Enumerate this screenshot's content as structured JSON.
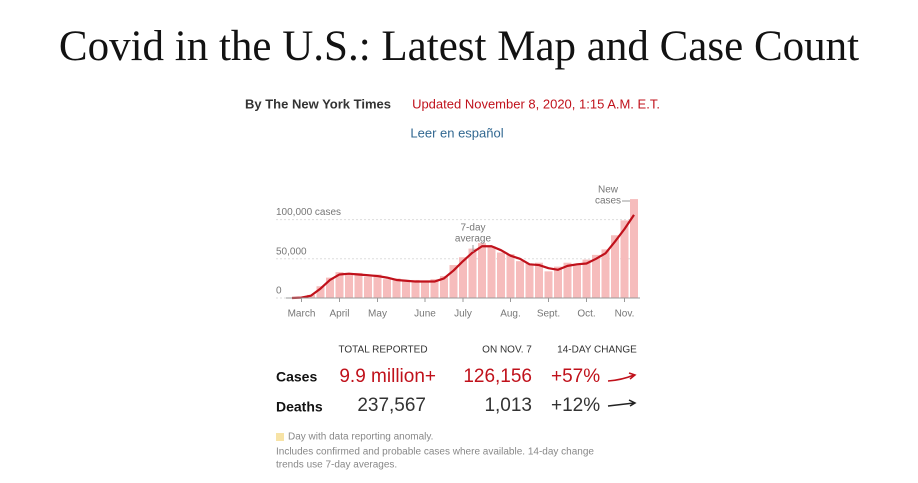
{
  "header": {
    "title": "Covid in the U.S.: Latest Map and Case Count",
    "byline": "By The New York Times",
    "updated": "Updated November 8, 2020, 1:15 A.M. E.T.",
    "language_link": "Leer en español"
  },
  "chart_data": {
    "type": "bar",
    "categories": [
      null,
      "March",
      null,
      null,
      null,
      "April",
      null,
      null,
      null,
      "May",
      null,
      null,
      null,
      null,
      "June",
      null,
      null,
      null,
      "July",
      null,
      null,
      null,
      null,
      "Aug.",
      null,
      null,
      null,
      "Sept.",
      null,
      null,
      null,
      "Oct.",
      null,
      null,
      null,
      "Nov.",
      null
    ],
    "series": [
      {
        "type": "bar",
        "color": "#f6bcbc",
        "values": [
          0,
          800,
          4000,
          15000,
          26000,
          33000,
          30000,
          32000,
          27000,
          30000,
          24000,
          25000,
          21000,
          23000,
          20000,
          24000,
          28000,
          42000,
          52000,
          63000,
          70000,
          66000,
          58000,
          56000,
          47000,
          44000,
          45000,
          34000,
          40000,
          45000,
          42000,
          49000,
          55000,
          62000,
          80000,
          99000,
          126156
        ]
      },
      {
        "type": "line",
        "color": "#c0111b",
        "values": [
          0,
          500,
          3000,
          12000,
          23000,
          30000,
          31000,
          30000,
          29000,
          28000,
          26000,
          23000,
          22000,
          21000,
          21000,
          21000,
          25000,
          35000,
          47000,
          58000,
          66000,
          66000,
          61000,
          54000,
          50000,
          43000,
          42000,
          38000,
          36000,
          41000,
          43000,
          44000,
          50000,
          57000,
          72000,
          88000,
          106000
        ]
      }
    ],
    "ylim": [
      0,
      125000
    ],
    "yticks": [
      0,
      {
        "value": 50000,
        "label": "50,000"
      },
      {
        "value": 100000,
        "label": "100,000 cases"
      }
    ],
    "grid": true,
    "annotations": [
      [
        "7-day",
        "average"
      ],
      [
        "New",
        "cases"
      ]
    ]
  },
  "table": {
    "columns": [
      "TOTAL REPORTED",
      "ON NOV. 7",
      "14-DAY CHANGE"
    ],
    "rows": [
      [
        "Cases",
        "9.9 million+",
        "126,156",
        "+57%"
      ],
      [
        "Deaths",
        "237,567",
        "1,013",
        "+12%"
      ]
    ]
  },
  "notes": {
    "anomaly": "Day with data reporting anomaly.",
    "sources": [
      "Includes confirmed and probable cases where available. 14-day change",
      "trends use 7-day averages."
    ]
  }
}
